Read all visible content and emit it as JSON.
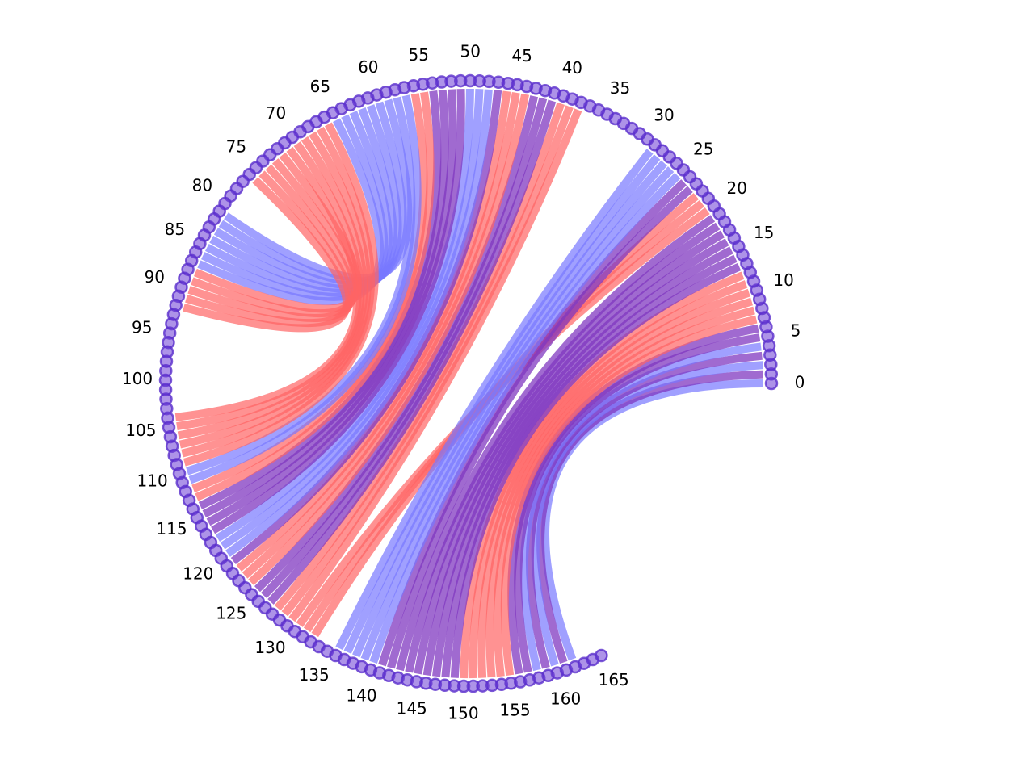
{
  "diagram": {
    "type": "chord-circle",
    "node_count": 166,
    "tick_labels": [
      "0",
      "5",
      "10",
      "15",
      "20",
      "25",
      "30",
      "35",
      "40",
      "45",
      "50",
      "55",
      "60",
      "65",
      "70",
      "75",
      "80",
      "85",
      "90",
      "95",
      "100",
      "105",
      "110",
      "115",
      "120",
      "125",
      "130",
      "135",
      "140",
      "145",
      "150",
      "155",
      "160",
      "165"
    ],
    "colors": {
      "red": "#ff6464",
      "blue": "#7878ff",
      "purple": "#8038c0",
      "node_fill": "#6a3ad6",
      "node_edge": "#5a2ecc"
    },
    "links": [
      {
        "a": 0,
        "b": 162,
        "color": "blue"
      },
      {
        "a": 1,
        "b": 161,
        "color": "purple"
      },
      {
        "a": 2,
        "b": 160,
        "color": "blue"
      },
      {
        "a": 3,
        "b": 159,
        "color": "purple"
      },
      {
        "a": 4,
        "b": 158,
        "color": "blue"
      },
      {
        "a": 5,
        "b": 157,
        "color": "purple"
      },
      {
        "a": 6,
        "b": 156,
        "color": "purple"
      },
      {
        "a": 7,
        "b": 155,
        "color": "red"
      },
      {
        "a": 8,
        "b": 154,
        "color": "red"
      },
      {
        "a": 9,
        "b": 153,
        "color": "red"
      },
      {
        "a": 10,
        "b": 152,
        "color": "red"
      },
      {
        "a": 11,
        "b": 151,
        "color": "red"
      },
      {
        "a": 12,
        "b": 150,
        "color": "red"
      },
      {
        "a": 13,
        "b": 149,
        "color": "purple"
      },
      {
        "a": 14,
        "b": 148,
        "color": "purple"
      },
      {
        "a": 15,
        "b": 147,
        "color": "purple"
      },
      {
        "a": 16,
        "b": 146,
        "color": "purple"
      },
      {
        "a": 17,
        "b": 145,
        "color": "purple"
      },
      {
        "a": 18,
        "b": 144,
        "color": "purple"
      },
      {
        "a": 19,
        "b": 143,
        "color": "purple"
      },
      {
        "a": 20,
        "b": 131,
        "color": "red"
      },
      {
        "a": 21,
        "b": 132,
        "color": "red"
      },
      {
        "a": 22,
        "b": 133,
        "color": "red"
      },
      {
        "a": 23,
        "b": 142,
        "color": "purple"
      },
      {
        "a": 24,
        "b": 141,
        "color": "purple"
      },
      {
        "a": 25,
        "b": 140,
        "color": "blue"
      },
      {
        "a": 26,
        "b": 139,
        "color": "blue"
      },
      {
        "a": 27,
        "b": 138,
        "color": "blue"
      },
      {
        "a": 28,
        "b": 137,
        "color": "blue"
      },
      {
        "a": 29,
        "b": 136,
        "color": "blue"
      },
      {
        "a": 38,
        "b": 130,
        "color": "red"
      },
      {
        "a": 39,
        "b": 129,
        "color": "red"
      },
      {
        "a": 40,
        "b": 128,
        "color": "red"
      },
      {
        "a": 41,
        "b": 127,
        "color": "purple"
      },
      {
        "a": 42,
        "b": 126,
        "color": "purple"
      },
      {
        "a": 43,
        "b": 125,
        "color": "purple"
      },
      {
        "a": 44,
        "b": 124,
        "color": "red"
      },
      {
        "a": 45,
        "b": 123,
        "color": "red"
      },
      {
        "a": 46,
        "b": 122,
        "color": "red"
      },
      {
        "a": 47,
        "b": 121,
        "color": "purple"
      },
      {
        "a": 48,
        "b": 120,
        "color": "blue"
      },
      {
        "a": 49,
        "b": 119,
        "color": "blue"
      },
      {
        "a": 50,
        "b": 118,
        "color": "blue"
      },
      {
        "a": 51,
        "b": 117,
        "color": "purple"
      },
      {
        "a": 52,
        "b": 116,
        "color": "purple"
      },
      {
        "a": 53,
        "b": 115,
        "color": "purple"
      },
      {
        "a": 54,
        "b": 114,
        "color": "purple"
      },
      {
        "a": 55,
        "b": 113,
        "color": "red"
      },
      {
        "a": 56,
        "b": 112,
        "color": "red"
      },
      {
        "a": 57,
        "b": 111,
        "color": "blue"
      },
      {
        "a": 58,
        "b": 110,
        "color": "blue"
      },
      {
        "a": 59,
        "b": 81,
        "color": "blue"
      },
      {
        "a": 60,
        "b": 82,
        "color": "blue"
      },
      {
        "a": 61,
        "b": 83,
        "color": "blue"
      },
      {
        "a": 62,
        "b": 84,
        "color": "blue"
      },
      {
        "a": 63,
        "b": 85,
        "color": "blue"
      },
      {
        "a": 64,
        "b": 86,
        "color": "blue"
      },
      {
        "a": 65,
        "b": 87,
        "color": "blue"
      },
      {
        "a": 66,
        "b": 109,
        "color": "red"
      },
      {
        "a": 67,
        "b": 108,
        "color": "red"
      },
      {
        "a": 68,
        "b": 107,
        "color": "red"
      },
      {
        "a": 69,
        "b": 106,
        "color": "red"
      },
      {
        "a": 70,
        "b": 105,
        "color": "red"
      },
      {
        "a": 71,
        "b": 104,
        "color": "red"
      },
      {
        "a": 72,
        "b": 88,
        "color": "red"
      },
      {
        "a": 73,
        "b": 89,
        "color": "red"
      },
      {
        "a": 74,
        "b": 90,
        "color": "red"
      },
      {
        "a": 75,
        "b": 91,
        "color": "red"
      },
      {
        "a": 76,
        "b": 92,
        "color": "red"
      }
    ]
  }
}
